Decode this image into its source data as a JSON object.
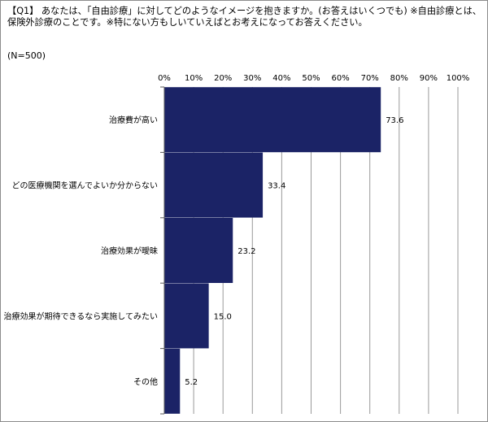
{
  "question": {
    "text": "【Q1】 あなたは、「自由診療」に対してどのようなイメージを抱きますか。(お答えはいくつでも) ※自由診療とは、保険外診療のことです。※特にない方もしいていえばとお考えになってお答えください。",
    "sample_size": "(N=500)"
  },
  "colors": {
    "bar": "#1b2366",
    "grid": "#9a9a9a",
    "axis": "#5a5a5a"
  },
  "chart_data": {
    "type": "bar",
    "orientation": "horizontal",
    "categories": [
      "治療費が高い",
      "どの医療機関を選んでよいか分からない",
      "治療効果が曖昧",
      "治療効果が期待できるなら実施してみたい",
      "その他"
    ],
    "values": [
      73.6,
      33.4,
      23.2,
      15.0,
      5.2
    ],
    "value_labels": [
      "73.6",
      "33.4",
      "23.2",
      "15.0",
      "5.2"
    ],
    "xlim": [
      0,
      100
    ],
    "ticks": [
      "0%",
      "10%",
      "20%",
      "30%",
      "40%",
      "50%",
      "60%",
      "70%",
      "80%",
      "90%",
      "100%"
    ],
    "grid": true,
    "title": "",
    "xlabel": "",
    "ylabel": ""
  }
}
